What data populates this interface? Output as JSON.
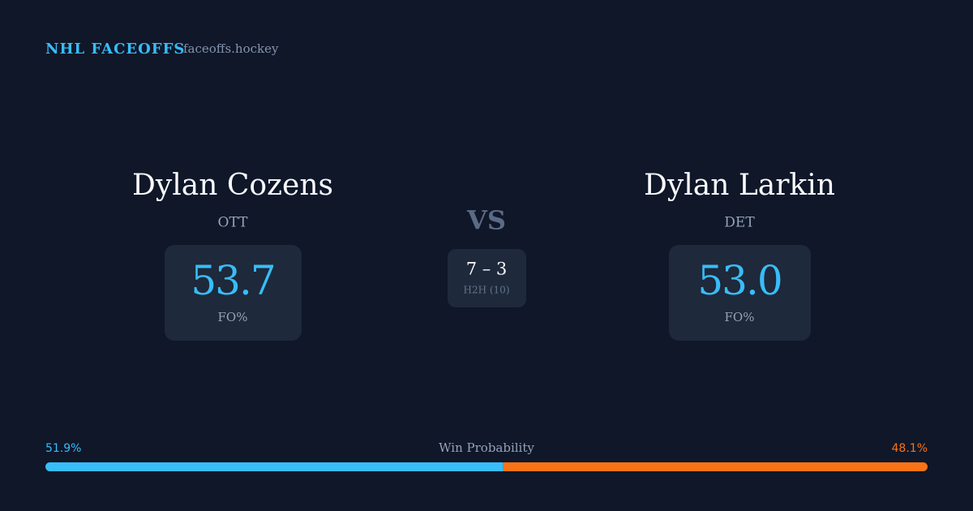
{
  "header": {
    "title": "NHL FACEOFFS",
    "site": "faceoffs.hockey"
  },
  "players": [
    {
      "name": "Dylan Cozens",
      "team": "OTT",
      "stat": "53.7",
      "stat_label": "FO%"
    },
    {
      "name": "Dylan Larkin",
      "team": "DET",
      "stat": "53.0",
      "stat_label": "FO%"
    }
  ],
  "versus": "VS",
  "head_to_head": {
    "score": "7 – 3",
    "label": "H2H (10)"
  },
  "win_probability": {
    "title": "Win Probability",
    "values": [
      51.9,
      48.1
    ],
    "value_labels": [
      "51.9%",
      "48.1%"
    ],
    "colors": [
      "#38bdf8",
      "#f97316"
    ]
  }
}
